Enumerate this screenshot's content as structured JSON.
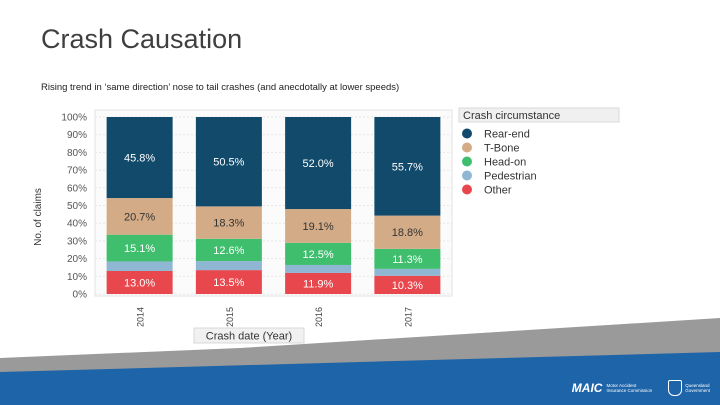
{
  "slide": {
    "title": "Crash Causation",
    "subtitle": "Rising trend in ‘same direction’ nose to tail crashes (and anecdotally at lower speeds)"
  },
  "footer": {
    "maic_mark": "MAIC",
    "maic_line1": "Motor Accident",
    "maic_line2": "Insurance Commission",
    "qld_line1": "Queensland",
    "qld_line2": "Government"
  },
  "chart_data": {
    "type": "bar",
    "stacked": true,
    "percent": true,
    "categories": [
      "2014",
      "2015",
      "2016",
      "2017"
    ],
    "xlabel": "Crash date (Year)",
    "ylabel": "No. of claims",
    "ylim": [
      0,
      100
    ],
    "yticks": [
      "0%",
      "10%",
      "20%",
      "30%",
      "40%",
      "50%",
      "60%",
      "70%",
      "80%",
      "90%",
      "100%"
    ],
    "legend_title": "Crash circumstance",
    "legend_position": "right",
    "series": [
      {
        "name": "Other",
        "color": "#e8474d",
        "values": [
          13.0,
          13.5,
          11.9,
          10.3
        ],
        "labels": [
          "13.0%",
          "13.5%",
          "11.9%",
          "10.3%"
        ]
      },
      {
        "name": "Pedestrian",
        "color": "#8fb7d3",
        "values": [
          5.4,
          5.1,
          4.5,
          3.9
        ],
        "labels": [
          "",
          "",
          "",
          ""
        ]
      },
      {
        "name": "Head-on",
        "color": "#3fbf6e",
        "values": [
          15.1,
          12.6,
          12.5,
          11.3
        ],
        "labels": [
          "15.1%",
          "12.6%",
          "12.5%",
          "11.3%"
        ]
      },
      {
        "name": "T-Bone",
        "color": "#d3ac87",
        "values": [
          20.7,
          18.3,
          19.1,
          18.8
        ],
        "labels": [
          "20.7%",
          "18.3%",
          "19.1%",
          "18.8%"
        ]
      },
      {
        "name": "Rear-end",
        "color": "#114a6b",
        "values": [
          45.8,
          50.5,
          52.0,
          55.7
        ],
        "labels": [
          "45.8%",
          "50.5%",
          "52.0%",
          "55.7%"
        ]
      }
    ],
    "legend_order": [
      "Rear-end",
      "T-Bone",
      "Head-on",
      "Pedestrian",
      "Other"
    ]
  }
}
